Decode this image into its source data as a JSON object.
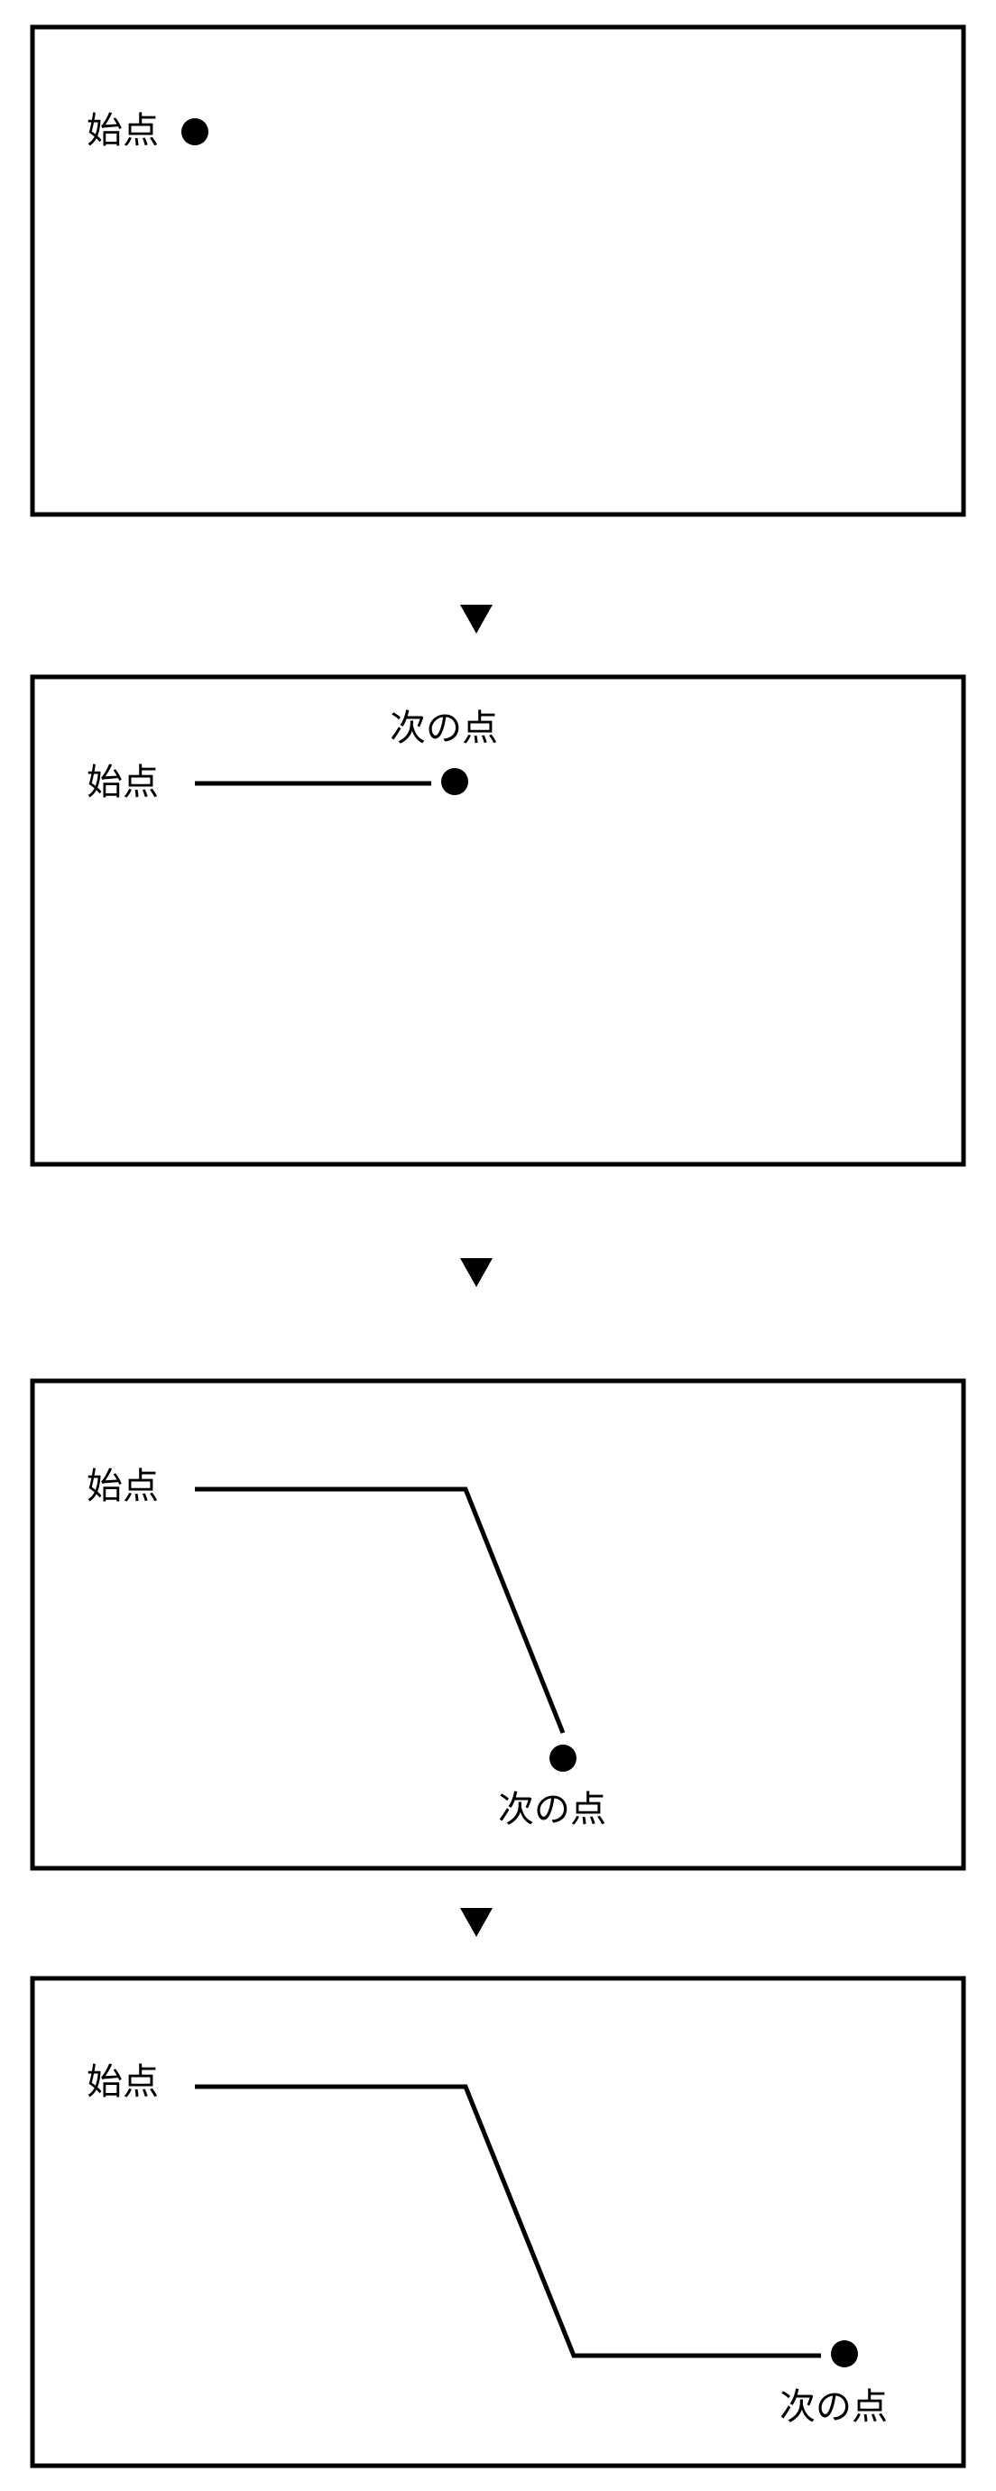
{
  "labels": {
    "start_point": "始点",
    "next_point": "次の点"
  },
  "colors": {
    "stroke": "#000000",
    "background": "#ffffff"
  },
  "icons": {
    "arrow": "down-triangle-icon",
    "point": "filled-circle-dot"
  },
  "panels": [
    {
      "step": 1,
      "description_visible": false
    },
    {
      "step": 2,
      "description_visible": false
    },
    {
      "step": 3,
      "description_visible": false
    },
    {
      "step": 4,
      "description_visible": false
    }
  ]
}
